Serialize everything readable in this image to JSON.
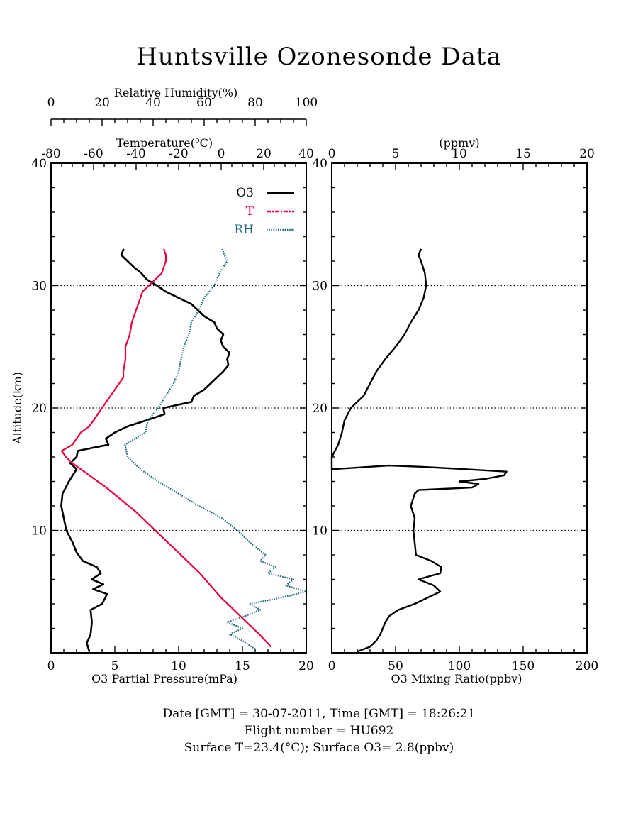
{
  "title": "Huntsville Ozonesonde Data",
  "footer": {
    "line1": "Date [GMT] = 30-07-2011,  Time [GMT] = 18:26:21",
    "line2": "Flight number = HU692",
    "line3": "Surface T=23.4(°C); Surface O3= 2.8(ppbv)"
  },
  "chart_data": [
    {
      "type": "line",
      "ylabel": "Altitude(km)",
      "ylim": [
        0,
        40
      ],
      "yticks": [
        10,
        20,
        30,
        40
      ],
      "grid_y": [
        10,
        20,
        30
      ],
      "axes": {
        "o3_pp": {
          "label": "O3 Partial Pressure(mPa)",
          "lim": [
            0,
            20
          ],
          "ticks": [
            0,
            5,
            10,
            15,
            20
          ]
        },
        "temperature": {
          "label": "Temperature(°C)",
          "lim": [
            -80,
            40
          ],
          "ticks": [
            -80,
            -60,
            -40,
            -20,
            0,
            20,
            40
          ]
        },
        "rh": {
          "label": "Relative Humidity(%)",
          "lim": [
            0,
            100
          ],
          "ticks": [
            0,
            20,
            40,
            60,
            80,
            100
          ]
        }
      },
      "legend": {
        "placement": "top-right",
        "entries": [
          {
            "label": "O3",
            "color": "#000000"
          },
          {
            "label": "T",
            "color": "#e8003c"
          },
          {
            "label": "RH",
            "color": "#1f6b78"
          }
        ]
      },
      "series": [
        {
          "name": "O3",
          "axis": "o3_pp",
          "color": "#000000",
          "points": [
            [
              3.0,
              0.1
            ],
            [
              2.8,
              0.8
            ],
            [
              3.1,
              1.5
            ],
            [
              3.2,
              2.5
            ],
            [
              3.1,
              3.5
            ],
            [
              4.0,
              4.0
            ],
            [
              4.4,
              4.8
            ],
            [
              3.3,
              5.2
            ],
            [
              4.1,
              5.6
            ],
            [
              3.2,
              6.0
            ],
            [
              3.9,
              6.5
            ],
            [
              3.6,
              7.0
            ],
            [
              2.5,
              7.5
            ],
            [
              2.0,
              8.2
            ],
            [
              1.7,
              9.0
            ],
            [
              1.2,
              10.0
            ],
            [
              1.0,
              11.0
            ],
            [
              0.8,
              12.0
            ],
            [
              0.9,
              13.0
            ],
            [
              1.4,
              14.0
            ],
            [
              2.0,
              15.0
            ],
            [
              1.5,
              15.5
            ],
            [
              2.0,
              16.0
            ],
            [
              2.1,
              16.5
            ],
            [
              3.5,
              16.8
            ],
            [
              4.5,
              17.0
            ],
            [
              4.3,
              17.5
            ],
            [
              5.0,
              18.0
            ],
            [
              6.0,
              18.5
            ],
            [
              7.5,
              19.0
            ],
            [
              8.9,
              19.5
            ],
            [
              8.8,
              20.0
            ],
            [
              11.0,
              20.5
            ],
            [
              11.2,
              21.0
            ],
            [
              12.0,
              21.5
            ],
            [
              12.5,
              22.0
            ],
            [
              13.0,
              22.5
            ],
            [
              13.5,
              23.0
            ],
            [
              13.9,
              23.5
            ],
            [
              13.8,
              24.0
            ],
            [
              14.0,
              24.5
            ],
            [
              13.5,
              25.0
            ],
            [
              13.3,
              25.5
            ],
            [
              13.5,
              26.0
            ],
            [
              13.0,
              26.5
            ],
            [
              12.8,
              27.0
            ],
            [
              12.0,
              27.5
            ],
            [
              11.5,
              28.0
            ],
            [
              11.0,
              28.5
            ],
            [
              10.0,
              29.0
            ],
            [
              9.0,
              29.5
            ],
            [
              8.3,
              30.0
            ],
            [
              7.5,
              30.5
            ],
            [
              7.1,
              31.0
            ],
            [
              6.5,
              31.5
            ],
            [
              6.0,
              32.0
            ],
            [
              5.5,
              32.5
            ],
            [
              5.7,
              33.0
            ]
          ]
        },
        {
          "name": "T",
          "axis": "temperature",
          "color": "#e8003c",
          "points": [
            [
              23.4,
              0.5
            ],
            [
              18.0,
              1.5
            ],
            [
              12.0,
              2.5
            ],
            [
              6.0,
              3.5
            ],
            [
              0.0,
              4.5
            ],
            [
              -5.0,
              5.5
            ],
            [
              -10.0,
              6.5
            ],
            [
              -16.0,
              7.5
            ],
            [
              -22.0,
              8.5
            ],
            [
              -28.0,
              9.5
            ],
            [
              -34.0,
              10.5
            ],
            [
              -40.0,
              11.5
            ],
            [
              -47.0,
              12.5
            ],
            [
              -54.0,
              13.5
            ],
            [
              -62.0,
              14.5
            ],
            [
              -70.0,
              15.5
            ],
            [
              -73.0,
              16.0
            ],
            [
              -75.0,
              16.5
            ],
            [
              -70.0,
              17.0
            ],
            [
              -68.0,
              17.5
            ],
            [
              -66.0,
              18.0
            ],
            [
              -62.0,
              18.5
            ],
            [
              -60.0,
              19.0
            ],
            [
              -58.0,
              19.5
            ],
            [
              -56.0,
              20.0
            ],
            [
              -54.0,
              20.5
            ],
            [
              -52.0,
              21.0
            ],
            [
              -50.0,
              21.5
            ],
            [
              -48.0,
              22.0
            ],
            [
              -46.0,
              22.5
            ],
            [
              -46.0,
              23.0
            ],
            [
              -45.0,
              24.0
            ],
            [
              -45.0,
              25.0
            ],
            [
              -43.0,
              26.0
            ],
            [
              -42.0,
              27.0
            ],
            [
              -40.0,
              28.0
            ],
            [
              -38.0,
              29.0
            ],
            [
              -37.0,
              29.5
            ],
            [
              -34.0,
              30.0
            ],
            [
              -31.0,
              30.5
            ],
            [
              -28.0,
              31.0
            ],
            [
              -27.0,
              31.5
            ],
            [
              -26.0,
              32.0
            ],
            [
              -26.0,
              32.5
            ],
            [
              -27.0,
              33.0
            ]
          ]
        },
        {
          "name": "RH",
          "axis": "rh",
          "color": "#1f6b78",
          "points": [
            [
              80.0,
              0.3
            ],
            [
              75.0,
              1.0
            ],
            [
              70.0,
              1.5
            ],
            [
              75.0,
              2.0
            ],
            [
              69.0,
              2.5
            ],
            [
              76.0,
              3.0
            ],
            [
              82.0,
              3.5
            ],
            [
              78.0,
              4.0
            ],
            [
              90.0,
              4.5
            ],
            [
              100.0,
              5.0
            ],
            [
              92.0,
              5.5
            ],
            [
              95.0,
              6.0
            ],
            [
              85.0,
              6.5
            ],
            [
              88.0,
              7.0
            ],
            [
              82.0,
              7.5
            ],
            [
              84.0,
              8.0
            ],
            [
              78.0,
              9.0
            ],
            [
              73.0,
              10.0
            ],
            [
              67.0,
              11.0
            ],
            [
              58.0,
              12.0
            ],
            [
              50.0,
              13.0
            ],
            [
              42.0,
              14.0
            ],
            [
              35.0,
              15.0
            ],
            [
              30.0,
              16.0
            ],
            [
              29.0,
              17.0
            ],
            [
              37.0,
              18.0
            ],
            [
              38.0,
              19.0
            ],
            [
              42.0,
              20.0
            ],
            [
              45.0,
              21.0
            ],
            [
              48.0,
              22.0
            ],
            [
              50.0,
              23.0
            ],
            [
              51.0,
              24.0
            ],
            [
              52.0,
              25.0
            ],
            [
              54.0,
              26.0
            ],
            [
              55.0,
              27.0
            ],
            [
              58.0,
              28.0
            ],
            [
              60.0,
              29.0
            ],
            [
              64.0,
              30.0
            ],
            [
              66.0,
              31.0
            ],
            [
              69.0,
              32.0
            ],
            [
              68.0,
              32.5
            ],
            [
              67.0,
              33.0
            ]
          ]
        }
      ]
    },
    {
      "type": "line",
      "ylim": [
        0,
        40
      ],
      "yticks": [
        10,
        20,
        30,
        40
      ],
      "grid_y": [
        10,
        20,
        30
      ],
      "axes": {
        "ppbv": {
          "label": "O3 Mixing Ratio(ppbv)",
          "lim": [
            0,
            200
          ],
          "ticks": [
            0,
            50,
            100,
            150,
            200
          ]
        },
        "ppmv": {
          "label": "(ppmv)",
          "lim": [
            0,
            20
          ],
          "ticks": [
            0,
            5,
            10,
            15,
            20
          ]
        }
      },
      "series": [
        {
          "name": "",
          "axis": "ppbv",
          "color": "#000000",
          "points": [
            [
              20,
              0.1
            ],
            [
              30,
              0.5
            ],
            [
              35,
              1.0
            ],
            [
              38,
              1.5
            ],
            [
              40,
              2.0
            ],
            [
              42,
              2.5
            ],
            [
              45,
              3.0
            ],
            [
              52,
              3.5
            ],
            [
              65,
              4.0
            ],
            [
              75,
              4.5
            ],
            [
              85,
              5.0
            ],
            [
              80,
              5.5
            ],
            [
              68,
              6.0
            ],
            [
              85,
              6.5
            ],
            [
              86,
              7.0
            ],
            [
              78,
              7.5
            ],
            [
              66,
              8.0
            ],
            [
              65,
              9.0
            ],
            [
              64,
              10.0
            ],
            [
              65,
              11.0
            ],
            [
              62,
              12.0
            ],
            [
              65,
              13.0
            ],
            [
              68,
              13.3
            ],
            [
              110,
              13.5
            ],
            [
              115,
              13.8
            ],
            [
              100,
              14.0
            ],
            [
              120,
              14.2
            ],
            [
              135,
              14.5
            ],
            [
              137,
              14.8
            ],
            [
              105,
              15.0
            ],
            [
              70,
              15.2
            ],
            [
              45,
              15.3
            ],
            [
              0,
              15.0
            ],
            [
              0,
              16.0
            ],
            [
              5,
              17.0
            ],
            [
              8,
              18.0
            ],
            [
              10,
              19.0
            ],
            [
              15,
              20.0
            ],
            [
              20,
              20.5
            ],
            [
              25,
              21.0
            ],
            [
              30,
              22.0
            ],
            [
              35,
              23.0
            ],
            [
              42,
              24.0
            ],
            [
              50,
              25.0
            ],
            [
              57,
              26.0
            ],
            [
              62,
              27.0
            ],
            [
              68,
              28.0
            ],
            [
              72,
              29.0
            ],
            [
              74,
              30.0
            ],
            [
              73,
              31.0
            ],
            [
              70,
              32.0
            ],
            [
              68,
              32.5
            ],
            [
              70,
              33.0
            ]
          ]
        }
      ]
    }
  ]
}
